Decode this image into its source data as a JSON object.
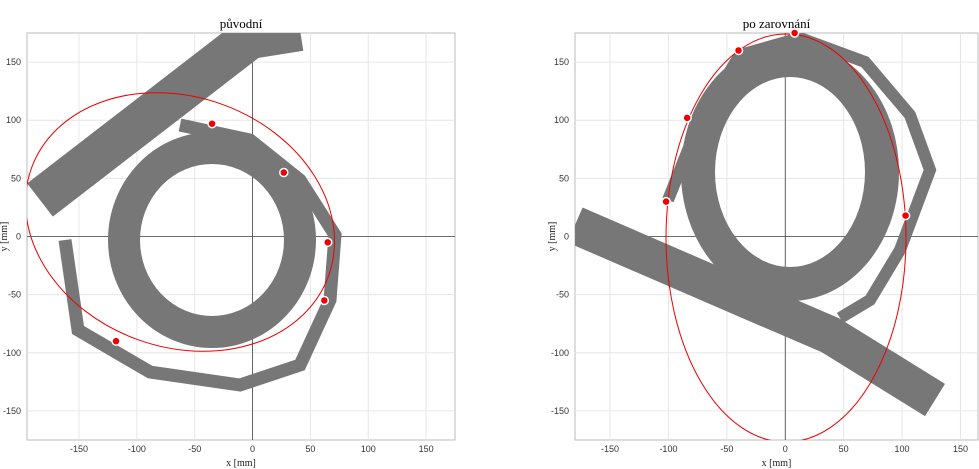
{
  "chart_data": [
    {
      "type": "scatter",
      "title": "původní",
      "xlabel": "x [mm]",
      "ylabel": "y [mm]",
      "xlim": [
        -195,
        175
      ],
      "ylim": [
        -175,
        175
      ],
      "xticks": [
        -150,
        -100,
        -50,
        0,
        50,
        100,
        150
      ],
      "yticks": [
        -150,
        -100,
        -50,
        0,
        50,
        100,
        150
      ],
      "grid": true,
      "series": [
        {
          "color": "#ee0000",
          "x": [
            -35,
            27,
            65,
            62,
            -118
          ],
          "values": [
            97,
            55,
            -5,
            -55,
            -90
          ]
        }
      ]
    },
    {
      "type": "scatter",
      "title": "po zarovnání",
      "xlabel": "x [mm]",
      "ylabel": "y [mm]",
      "xlim": [
        -180,
        165
      ],
      "ylim": [
        -175,
        175
      ],
      "xticks": [
        -150,
        -100,
        -50,
        0,
        50,
        100,
        150
      ],
      "yticks": [
        -150,
        -100,
        -50,
        0,
        50,
        100,
        150
      ],
      "grid": true,
      "series": [
        {
          "color": "#ee0000",
          "x": [
            8,
            -40,
            -84,
            -102,
            103
          ],
          "values": [
            175,
            160,
            102,
            30,
            18
          ]
        }
      ]
    }
  ]
}
